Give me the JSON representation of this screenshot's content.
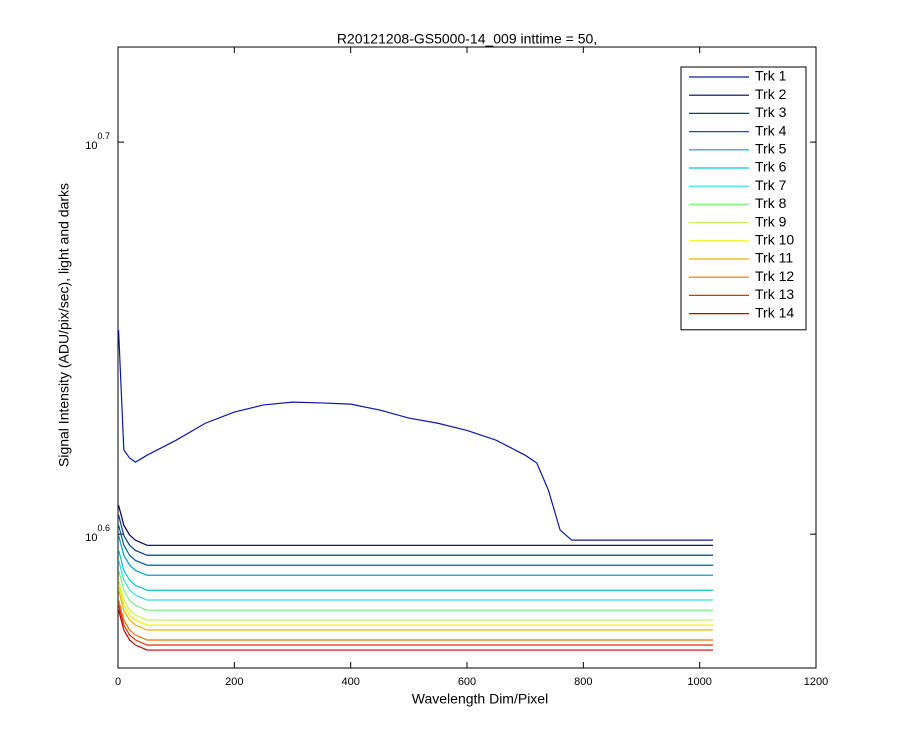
{
  "chart_data": {
    "type": "line",
    "title": "R20121208-GS5000-14_009 inttime = 50,",
    "x_label": "Wavelength Dim/Pixel",
    "y_label": "Signal Intensity (ADU/pix/sec), light and darks",
    "log_y": true,
    "grid": false,
    "legend": "upper right",
    "xlim": [
      0,
      1200
    ],
    "xticks": [
      0,
      200,
      400,
      600,
      800,
      1000,
      1200
    ],
    "ylim": [
      3.68,
      5.3
    ],
    "yticks": [
      {
        "value": 3.981,
        "label": "10^0.6"
      },
      {
        "value": 5.012,
        "label": "10^0.7"
      }
    ],
    "x": [
      1,
      10,
      20,
      30,
      50,
      100,
      150,
      200,
      250,
      300,
      350,
      400,
      450,
      500,
      550,
      600,
      650,
      700,
      720,
      740,
      760,
      780,
      800,
      900,
      1000,
      1023
    ],
    "series": [
      {
        "name": "Trk 1",
        "color": "#0a1aa8",
        "values": [
          4.488,
          4.183,
          4.163,
          4.153,
          4.17,
          4.207,
          4.249,
          4.277,
          4.295,
          4.302,
          4.3,
          4.297,
          4.282,
          4.262,
          4.249,
          4.231,
          4.207,
          4.17,
          4.151,
          4.085,
          3.991,
          3.967,
          3.967,
          3.967,
          3.967,
          3.967
        ]
      },
      {
        "name": "Trk 2",
        "color": "#000050",
        "values": [
          4.049,
          4.002,
          3.979,
          3.967,
          3.955,
          3.955,
          3.955,
          3.955,
          3.955,
          3.955,
          3.955,
          3.955,
          3.955,
          3.955,
          3.955,
          3.955,
          3.955,
          3.955,
          3.955,
          3.955,
          3.955,
          3.955,
          3.955,
          3.955,
          3.955,
          3.955
        ]
      },
      {
        "name": "Trk 3",
        "color": "#003e8a",
        "values": [
          4.026,
          3.978,
          3.955,
          3.943,
          3.932,
          3.932,
          3.932,
          3.932,
          3.932,
          3.932,
          3.932,
          3.932,
          3.932,
          3.932,
          3.932,
          3.932,
          3.932,
          3.932,
          3.932,
          3.932,
          3.932,
          3.932,
          3.932,
          3.932,
          3.932,
          3.932
        ]
      },
      {
        "name": "Trk 4",
        "color": "#005f9b",
        "values": [
          4.002,
          3.955,
          3.932,
          3.92,
          3.909,
          3.909,
          3.909,
          3.909,
          3.909,
          3.909,
          3.909,
          3.909,
          3.909,
          3.909,
          3.909,
          3.909,
          3.909,
          3.909,
          3.909,
          3.909,
          3.909,
          3.909,
          3.909,
          3.909,
          3.909,
          3.909
        ]
      },
      {
        "name": "Trk 5",
        "color": "#00a0c8",
        "values": [
          3.978,
          3.932,
          3.909,
          3.897,
          3.886,
          3.886,
          3.886,
          3.886,
          3.886,
          3.886,
          3.886,
          3.886,
          3.886,
          3.886,
          3.886,
          3.886,
          3.886,
          3.886,
          3.886,
          3.886,
          3.886,
          3.886,
          3.886,
          3.886,
          3.886,
          3.886
        ]
      },
      {
        "name": "Trk 6",
        "color": "#00c8d0",
        "values": [
          3.944,
          3.897,
          3.875,
          3.863,
          3.852,
          3.852,
          3.852,
          3.852,
          3.852,
          3.852,
          3.852,
          3.852,
          3.852,
          3.852,
          3.852,
          3.852,
          3.852,
          3.852,
          3.852,
          3.852,
          3.852,
          3.852,
          3.852,
          3.852,
          3.852,
          3.852
        ]
      },
      {
        "name": "Trk 7",
        "color": "#30e0e0",
        "values": [
          3.921,
          3.875,
          3.853,
          3.841,
          3.83,
          3.83,
          3.83,
          3.83,
          3.83,
          3.83,
          3.83,
          3.83,
          3.83,
          3.83,
          3.83,
          3.83,
          3.83,
          3.83,
          3.83,
          3.83,
          3.83,
          3.83,
          3.83,
          3.83,
          3.83,
          3.83
        ]
      },
      {
        "name": "Trk 8",
        "color": "#80f080",
        "values": [
          3.898,
          3.852,
          3.829,
          3.818,
          3.807,
          3.807,
          3.807,
          3.807,
          3.807,
          3.807,
          3.807,
          3.807,
          3.807,
          3.807,
          3.807,
          3.807,
          3.807,
          3.807,
          3.807,
          3.807,
          3.807,
          3.807,
          3.807,
          3.807,
          3.807,
          3.807
        ]
      },
      {
        "name": "Trk 9",
        "color": "#c8f060",
        "values": [
          3.875,
          3.83,
          3.807,
          3.796,
          3.785,
          3.785,
          3.785,
          3.785,
          3.785,
          3.785,
          3.785,
          3.785,
          3.785,
          3.785,
          3.785,
          3.785,
          3.785,
          3.785,
          3.785,
          3.785,
          3.785,
          3.785,
          3.785,
          3.785,
          3.785,
          3.785
        ]
      },
      {
        "name": "Trk 10",
        "color": "#f0f000",
        "values": [
          3.864,
          3.819,
          3.796,
          3.785,
          3.774,
          3.774,
          3.774,
          3.774,
          3.774,
          3.774,
          3.774,
          3.774,
          3.774,
          3.774,
          3.774,
          3.774,
          3.774,
          3.774,
          3.774,
          3.774,
          3.774,
          3.774,
          3.774,
          3.774,
          3.774,
          3.774
        ]
      },
      {
        "name": "Trk 11",
        "color": "#f0b000",
        "values": [
          3.853,
          3.807,
          3.785,
          3.774,
          3.763,
          3.763,
          3.763,
          3.763,
          3.763,
          3.763,
          3.763,
          3.763,
          3.763,
          3.763,
          3.763,
          3.763,
          3.763,
          3.763,
          3.763,
          3.763,
          3.763,
          3.763,
          3.763,
          3.763,
          3.763,
          3.763
        ]
      },
      {
        "name": "Trk 12",
        "color": "#f07000",
        "values": [
          3.83,
          3.785,
          3.763,
          3.752,
          3.741,
          3.741,
          3.741,
          3.741,
          3.741,
          3.741,
          3.741,
          3.741,
          3.741,
          3.741,
          3.741,
          3.741,
          3.741,
          3.741,
          3.741,
          3.741,
          3.741,
          3.741,
          3.741,
          3.741,
          3.741,
          3.741
        ]
      },
      {
        "name": "Trk 13",
        "color": "#e03000",
        "values": [
          3.819,
          3.774,
          3.752,
          3.741,
          3.73,
          3.73,
          3.73,
          3.73,
          3.73,
          3.73,
          3.73,
          3.73,
          3.73,
          3.73,
          3.73,
          3.73,
          3.73,
          3.73,
          3.73,
          3.73,
          3.73,
          3.73,
          3.73,
          3.73,
          3.73,
          3.73
        ]
      },
      {
        "name": "Trk 14",
        "color": "#c00000",
        "values": [
          3.808,
          3.763,
          3.741,
          3.73,
          3.719,
          3.719,
          3.719,
          3.719,
          3.719,
          3.719,
          3.719,
          3.719,
          3.719,
          3.719,
          3.719,
          3.719,
          3.719,
          3.719,
          3.719,
          3.719,
          3.719,
          3.719,
          3.719,
          3.719,
          3.719,
          3.719
        ]
      }
    ]
  }
}
